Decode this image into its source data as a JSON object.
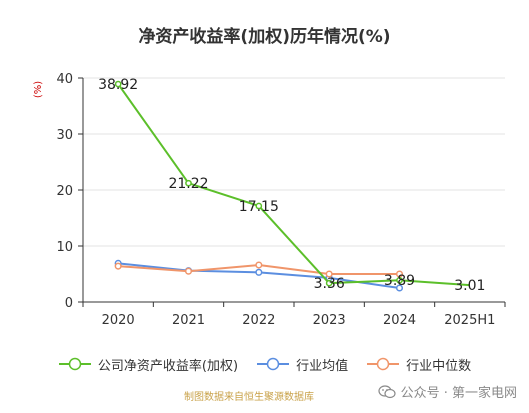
{
  "title": "净资产收益率(加权)历年情况(%)",
  "y_unit": "(%)",
  "footer": {
    "source": "制图数据来自恒生聚源数据库",
    "watermark": "公众号 · 第一家电网"
  },
  "colors": {
    "series_roe": "#5cbf2a",
    "series_avg": "#5b8ee0",
    "series_median": "#f0956a",
    "axis": "#333333",
    "grid": "#e3e3e3",
    "title": "#333333",
    "source": "#c9a24a"
  },
  "chart_data": {
    "type": "line",
    "title": "净资产收益率(加权)历年情况(%)",
    "ylabel": "(%)",
    "xlabel": "",
    "categories": [
      "2020",
      "2021",
      "2022",
      "2023",
      "2024",
      "2025H1"
    ],
    "y_ticks": [
      0,
      10,
      20,
      30,
      40
    ],
    "ylim": [
      0,
      40
    ],
    "grid": true,
    "legend_position": "bottom",
    "series": [
      {
        "name": "公司净资产收益率(加权)",
        "values": [
          38.92,
          21.22,
          17.15,
          3.36,
          3.89,
          3.01
        ],
        "labels": [
          "38.92",
          "21.22",
          "17.15",
          "3.36",
          "3.89",
          "3.01"
        ],
        "markers_on": [
          0,
          1,
          2,
          3,
          4
        ]
      },
      {
        "name": "行业均值",
        "values": [
          6.9,
          5.6,
          5.3,
          4.3,
          2.5,
          null
        ]
      },
      {
        "name": "行业中位数",
        "values": [
          6.4,
          5.5,
          6.6,
          5.0,
          5.0,
          null
        ]
      }
    ]
  }
}
